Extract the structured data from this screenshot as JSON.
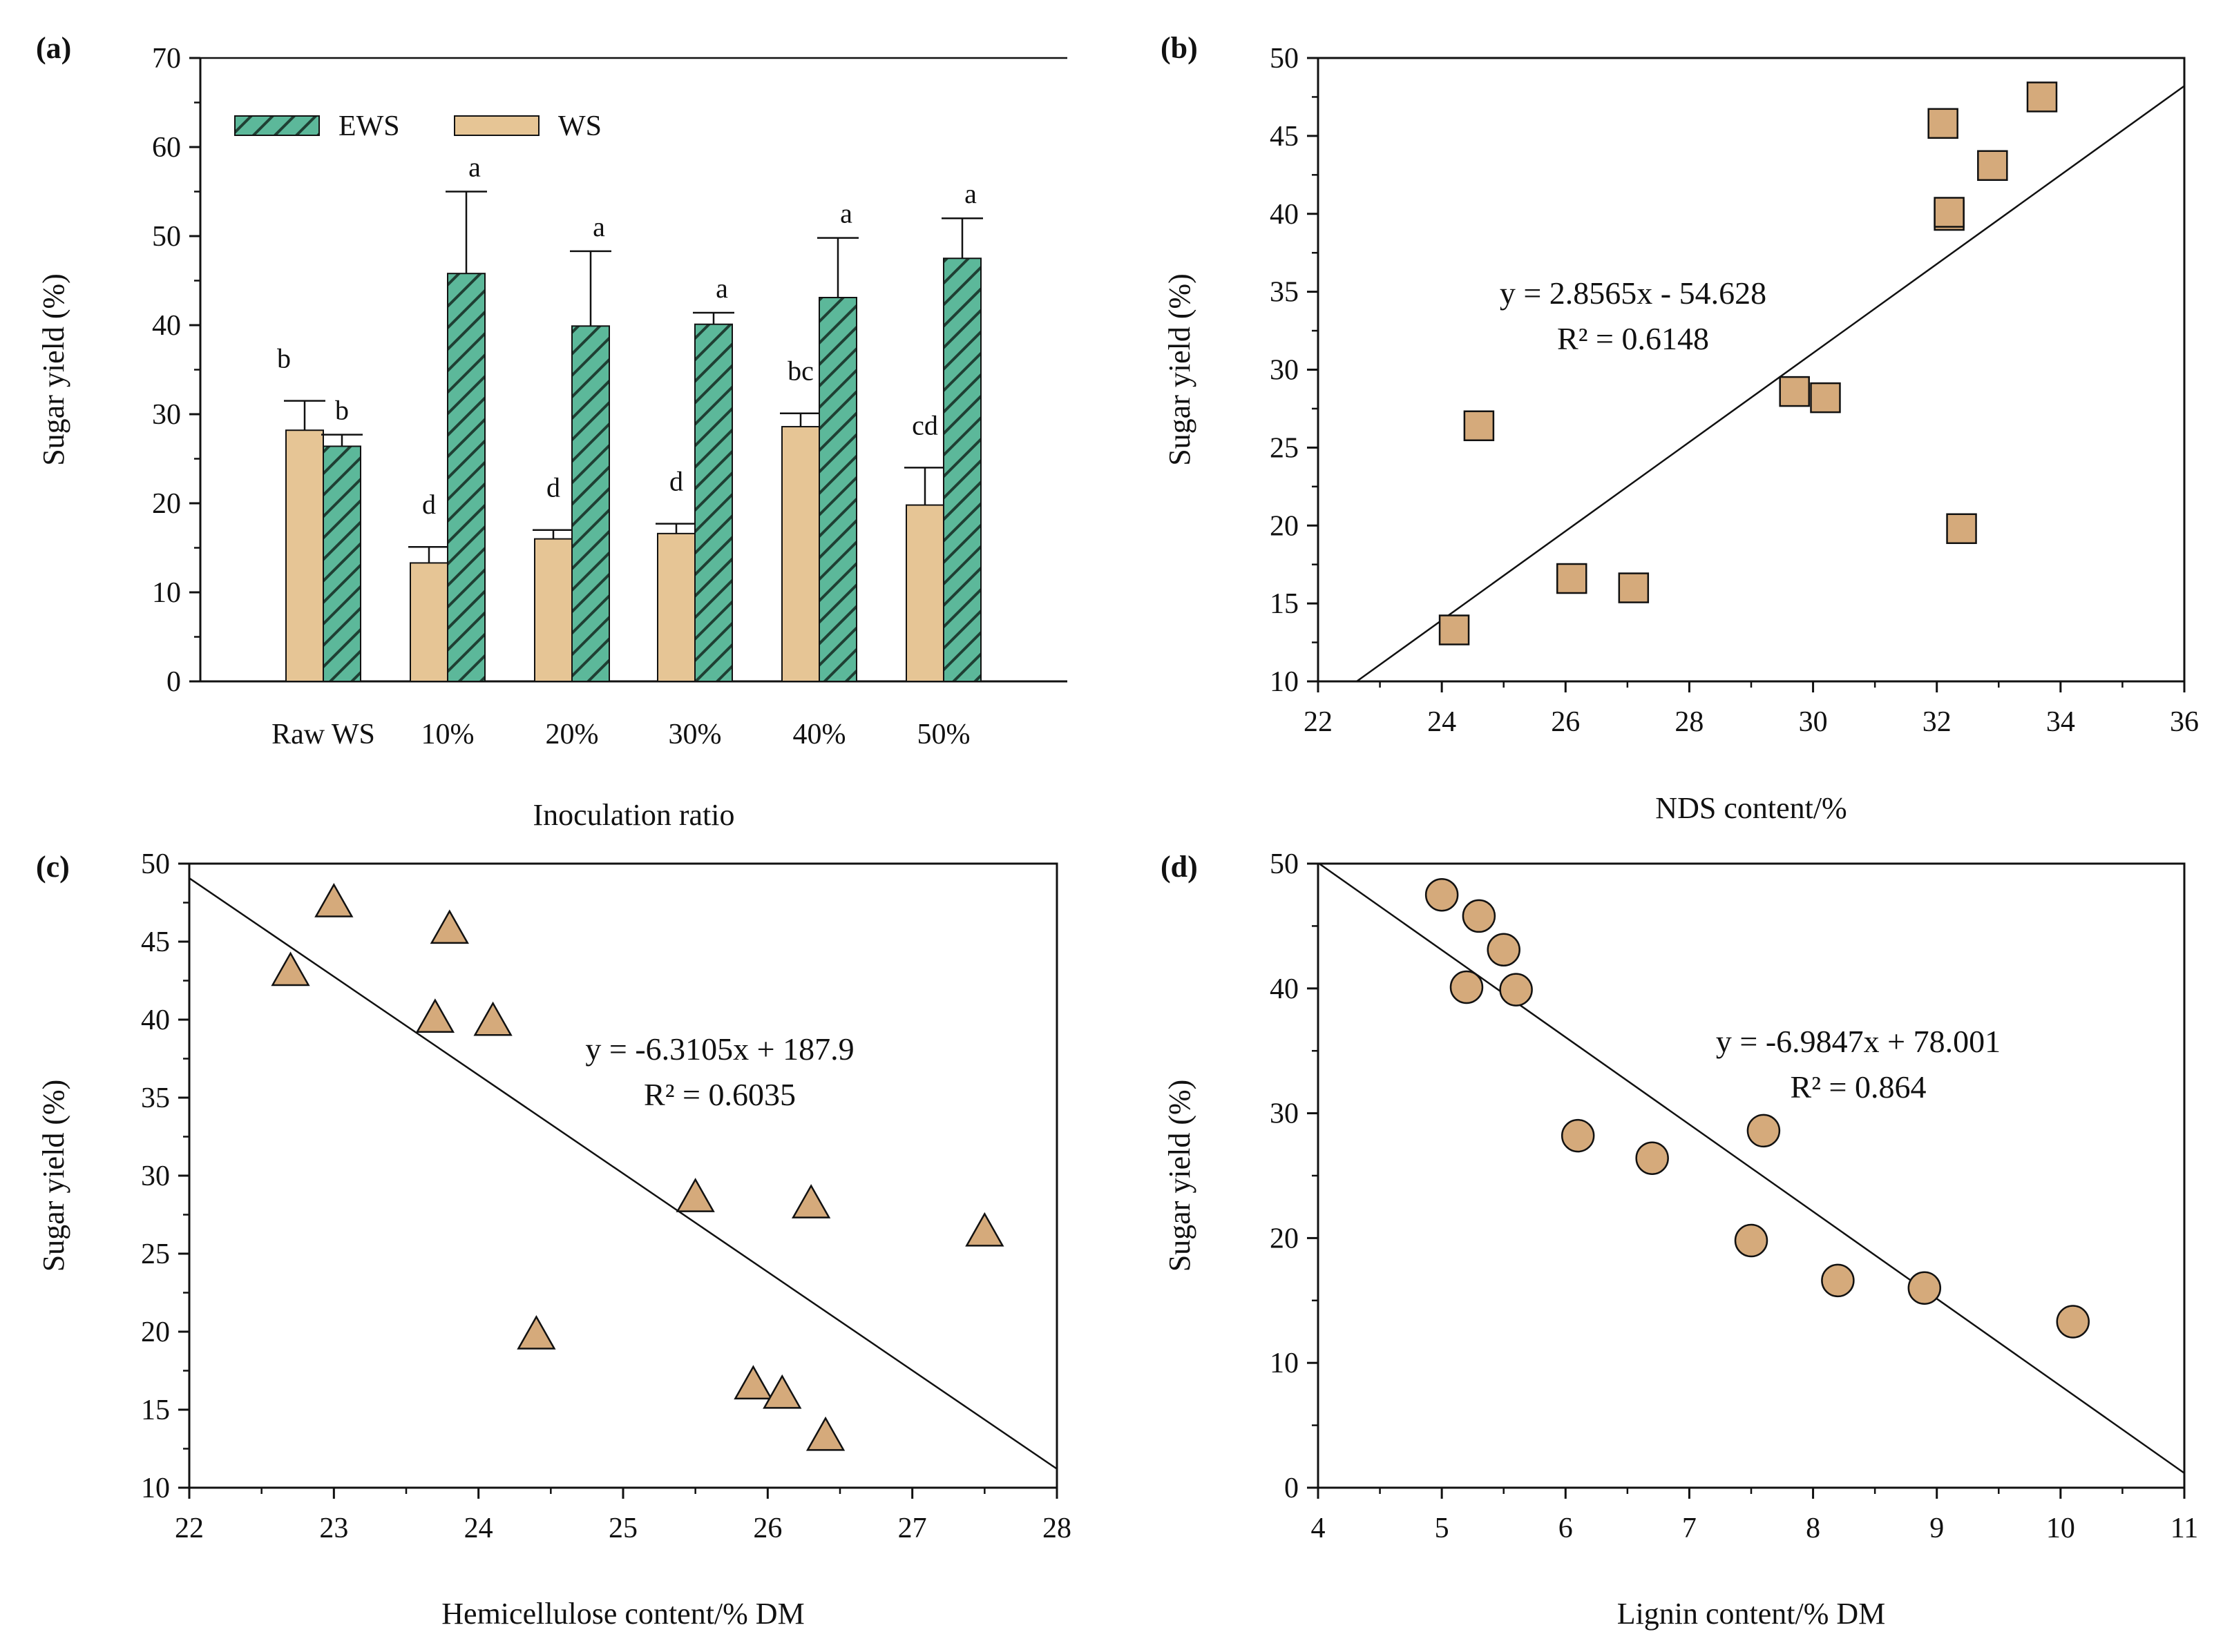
{
  "colors": {
    "ews_fill": "#5cb89a",
    "ews_hatch": "#1f3f33",
    "ws_fill": "#e6c595",
    "marker_fill": "#d5aa7b",
    "axis": "#111111"
  },
  "chart_data": [
    {
      "panel": "(a)",
      "type": "bar",
      "xlabel": "Inoculation ratio",
      "ylabel": "Sugar yield (%)",
      "ylim": [
        0,
        70
      ],
      "yticks": [
        "0",
        "10",
        "20",
        "30",
        "40",
        "50",
        "60",
        "70"
      ],
      "categories": [
        "Raw WS",
        "10%",
        "20%",
        "30%",
        "40%",
        "50%"
      ],
      "legend": [
        "EWS",
        "WS"
      ],
      "series": [
        {
          "name": "WS",
          "values": [
            28.2,
            13.3,
            16.0,
            16.6,
            28.6,
            19.8
          ],
          "errors": [
            3.3,
            1.8,
            1.0,
            1.1,
            1.5,
            4.2
          ],
          "labels": [
            "b",
            "d",
            "d",
            "d",
            "bc",
            "cd"
          ]
        },
        {
          "name": "EWS",
          "values": [
            26.4,
            45.8,
            39.9,
            40.1,
            43.1,
            47.5
          ],
          "errors": [
            1.3,
            9.2,
            8.4,
            1.3,
            6.7,
            4.5
          ],
          "labels": [
            "b",
            "a",
            "a",
            "a",
            "a",
            "a"
          ]
        }
      ]
    },
    {
      "panel": "(b)",
      "type": "scatter",
      "marker": "square",
      "xlabel": "NDS content/%",
      "ylabel": "Sugar yield (%)",
      "xlim": [
        22,
        36
      ],
      "ylim": [
        10,
        50
      ],
      "xticks": [
        "22",
        "24",
        "26",
        "28",
        "30",
        "32",
        "34",
        "36"
      ],
      "yticks": [
        "10",
        "15",
        "20",
        "25",
        "30",
        "35",
        "40",
        "45",
        "50"
      ],
      "x": [
        24.2,
        24.6,
        26.1,
        27.1,
        29.7,
        30.2,
        32.1,
        32.2,
        32.2,
        32.4,
        32.9,
        33.7
      ],
      "y": [
        13.3,
        26.4,
        16.6,
        16.0,
        28.6,
        28.2,
        45.8,
        39.9,
        40.1,
        19.8,
        43.1,
        47.5
      ],
      "fit": {
        "slope": 2.8565,
        "intercept": -54.628
      },
      "equation": "y = 2.8565x - 54.628",
      "r2": "R² = 0.6148"
    },
    {
      "panel": "(c)",
      "type": "scatter",
      "marker": "triangle",
      "xlabel": "Hemicellulose content/% DM",
      "ylabel": "Sugar yield (%)",
      "xlim": [
        22,
        28
      ],
      "ylim": [
        10,
        50
      ],
      "xticks": [
        "22",
        "23",
        "24",
        "25",
        "26",
        "27",
        "28"
      ],
      "yticks": [
        "10",
        "15",
        "20",
        "25",
        "30",
        "35",
        "40",
        "45",
        "50"
      ],
      "x": [
        22.7,
        23.0,
        23.7,
        23.8,
        24.1,
        24.4,
        25.5,
        25.9,
        26.1,
        26.3,
        26.4,
        27.5
      ],
      "y": [
        43.1,
        47.5,
        40.1,
        45.8,
        39.9,
        19.8,
        28.6,
        16.6,
        16.0,
        28.2,
        13.3,
        26.4
      ],
      "fit": {
        "slope": -6.3105,
        "intercept": 187.9
      },
      "equation": "y = -6.3105x + 187.9",
      "r2": "R² = 0.6035"
    },
    {
      "panel": "(d)",
      "type": "scatter",
      "marker": "circle",
      "xlabel": "Lignin content/% DM",
      "ylabel": "Sugar yield (%)",
      "xlim": [
        4,
        11
      ],
      "ylim": [
        0,
        50
      ],
      "xticks": [
        "4",
        "5",
        "6",
        "7",
        "8",
        "9",
        "10",
        "11"
      ],
      "yticks": [
        "0",
        "10",
        "20",
        "30",
        "40",
        "50"
      ],
      "x": [
        5.0,
        5.3,
        5.5,
        5.2,
        5.6,
        6.1,
        6.7,
        7.6,
        7.5,
        8.2,
        8.9,
        10.1
      ],
      "y": [
        47.5,
        45.8,
        43.1,
        40.1,
        39.9,
        28.2,
        26.4,
        28.6,
        19.8,
        16.6,
        16.0,
        13.3
      ],
      "fit": {
        "slope": -6.9847,
        "intercept": 78.001
      },
      "equation": "y = -6.9847x + 78.001",
      "r2": "R² = 0.864"
    }
  ]
}
